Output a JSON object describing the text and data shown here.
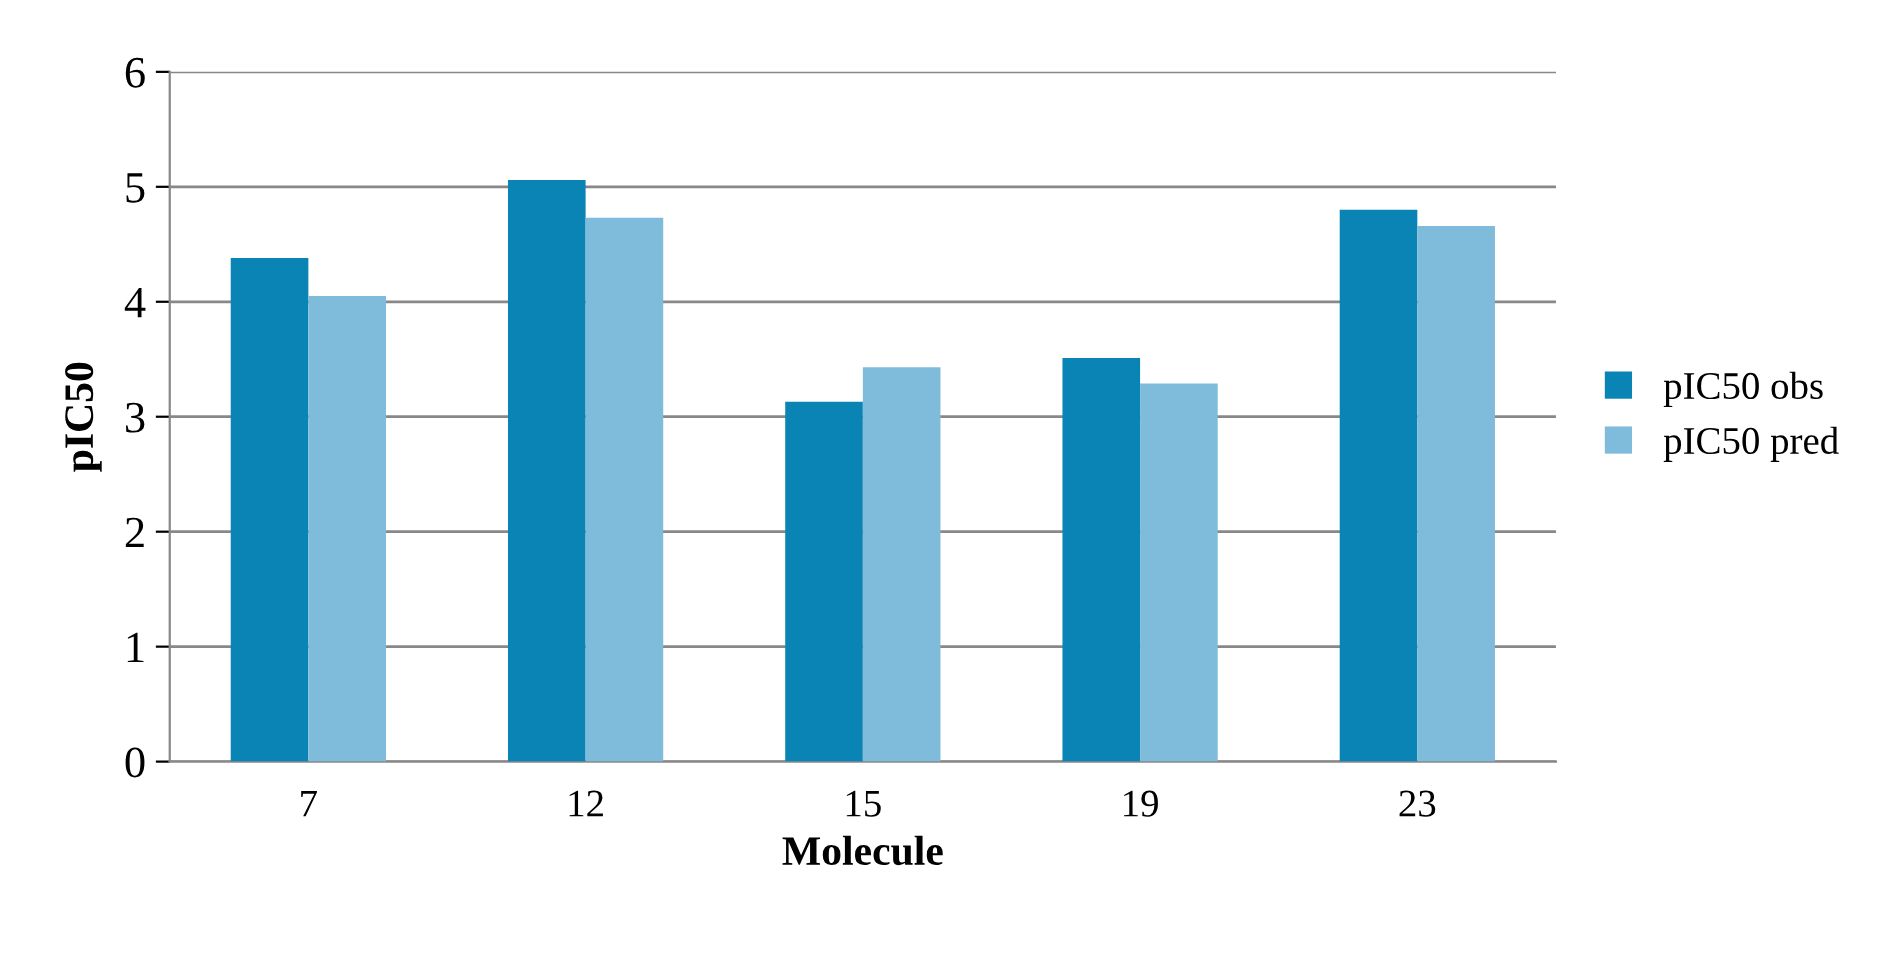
{
  "chart_data": {
    "type": "bar",
    "xlabel": "Molecule",
    "ylabel": "pIC50",
    "categories": [
      "7",
      "12",
      "15",
      "19",
      "23"
    ],
    "series": [
      {
        "name": "pIC50 obs",
        "color": "#0a84b4",
        "values": [
          4.38,
          5.06,
          3.13,
          3.51,
          4.8
        ]
      },
      {
        "name": "pIC50 pred",
        "color": "#7fbcdc",
        "values": [
          4.05,
          4.73,
          3.43,
          3.29,
          4.66
        ]
      }
    ],
    "ylim": [
      0,
      6
    ],
    "yticks": [
      0,
      1,
      2,
      3,
      4,
      5,
      6
    ],
    "grid": "y",
    "legend": "right"
  }
}
